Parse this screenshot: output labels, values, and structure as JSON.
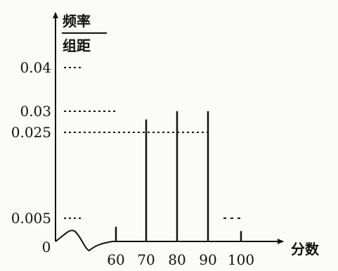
{
  "chart_data": {
    "type": "bar",
    "title": "",
    "ylabel_numerator": "频率",
    "ylabel_denominator": "组距",
    "xlabel": "分数",
    "x_ticks": [
      "60",
      "70",
      "80",
      "90",
      "100"
    ],
    "y_ticks": [
      "0.005",
      "0.025",
      "0.03",
      "0.04"
    ],
    "origin_label": "0",
    "bins": [
      {
        "from": 50,
        "to": 60,
        "value": null
      },
      {
        "from": 60,
        "to": 70,
        "value": null
      },
      {
        "from": 70,
        "to": 80,
        "value": null
      },
      {
        "from": 80,
        "to": 90,
        "value": null
      },
      {
        "from": 90,
        "to": 100,
        "value": 0.005
      }
    ],
    "visible_verticals": [
      {
        "x": 60,
        "top": 0.003
      },
      {
        "x": 70,
        "top": 0.028
      },
      {
        "x": 80,
        "top": 0.03
      },
      {
        "x": 90,
        "top": 0.03
      },
      {
        "x": 100,
        "top": 0.002
      }
    ],
    "reference_lines": [
      {
        "y": 0.04,
        "to_x": 50
      },
      {
        "y": 0.03,
        "to_x": 60
      },
      {
        "y": 0.025,
        "to_x": 90
      },
      {
        "y": 0.005,
        "to_x": 50
      }
    ],
    "axis_break": true,
    "ylim": [
      0,
      0.045
    ],
    "xlim": [
      50,
      100
    ],
    "grid": false,
    "legend": "none",
    "colors": {
      "ink": "#111111",
      "background": "#fbfbfa"
    }
  }
}
